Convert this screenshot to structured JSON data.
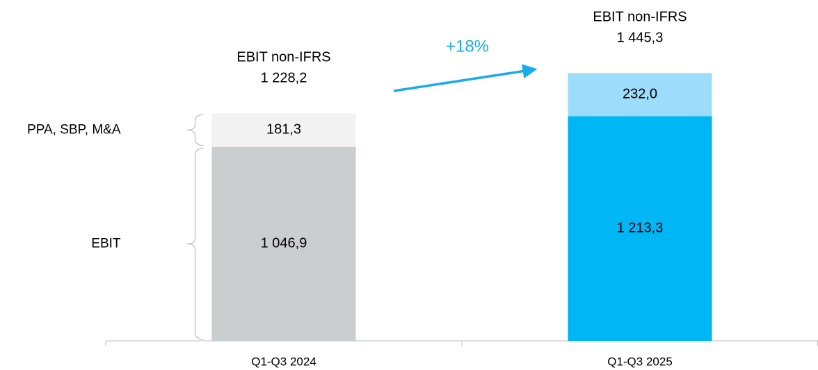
{
  "chart_data": {
    "type": "stacked-bar",
    "categories": [
      "Q1-Q3 2024",
      "Q1-Q3 2025"
    ],
    "series": [
      {
        "name": "EBIT",
        "colors": [
          "#cbcecf",
          "#00b6f5"
        ],
        "values": [
          1046.9,
          1213.3
        ],
        "value_labels": [
          "1 046,9",
          "1 213,3"
        ]
      },
      {
        "name": "PPA, SBP, M&A",
        "colors": [
          "#f2f2f2",
          "#9ddcfb"
        ],
        "values": [
          181.3,
          232.0
        ],
        "value_labels": [
          "181,3",
          "232,0"
        ]
      }
    ],
    "totals": {
      "label": "EBIT non-IFRS",
      "values": [
        1228.2,
        1445.3
      ],
      "value_labels": [
        "1 228,2",
        "1 445,3"
      ]
    },
    "annotation": {
      "text": "+18%",
      "color": "#1aabe8"
    },
    "ylim": [
      0,
      1840
    ]
  }
}
